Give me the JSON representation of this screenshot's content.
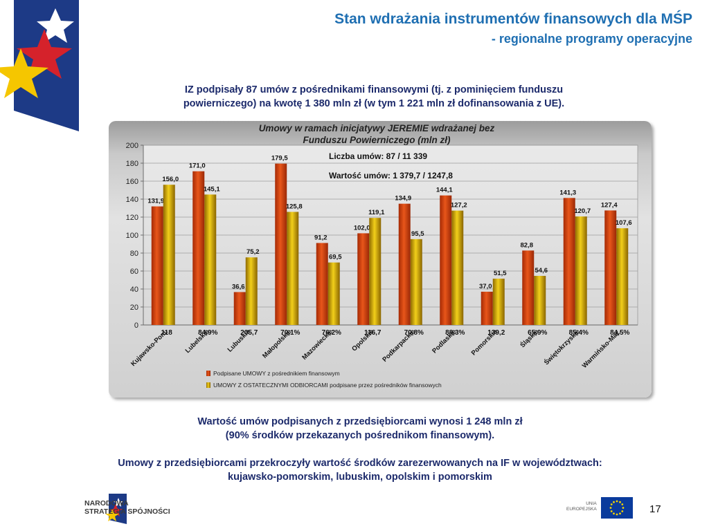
{
  "header": {
    "title_line1": "Stan wdrażania instrumentów finansowych dla MŚP",
    "title_line2": "- regionalne programy operacyjne"
  },
  "intro": {
    "line1": "IZ podpisały 87 umów z pośrednikami finansowymi (tj. z pominięciem funduszu",
    "line2": "powierniczego) na kwotę 1 380 mln zł (w tym 1 221 mln zł dofinansowania z UE)."
  },
  "chart_data": {
    "type": "bar",
    "title_line1": "Umowy w ramach inicjatywy JEREMIE wdrażanej bez",
    "title_line2": "Funduszu Powierniczego (mln zł)",
    "categories": [
      "Kujawsko-Pom.",
      "Lubelskie",
      "Lubuskie",
      "Małopolskie",
      "Mazowieckie",
      "Opolskie",
      "Podkarpackie",
      "Podlaskie",
      "Pomorskie",
      "Śląskie",
      "Świętokrzyskie",
      "Warmińsko-Maz."
    ],
    "series": [
      {
        "name": "Podpisane UMOWY z pośrednikiem finansowym",
        "color": "#d84a12",
        "values": [
          131.9,
          171.0,
          36.6,
          179.5,
          91.2,
          102.0,
          134.9,
          144.1,
          37.0,
          82.8,
          141.3,
          127.4
        ],
        "labels": [
          "131,9",
          "171,0",
          "36,6",
          "179,5",
          "91,2",
          "102,0",
          "134,9",
          "144,1",
          "37,0",
          "82,8",
          "141,3",
          "127,4"
        ]
      },
      {
        "name": "UMOWY Z OSTATECZNYMI ODBIORCAMI podpisane przez pośredników finansowych",
        "color": "#d8b200",
        "values": [
          156.0,
          145.1,
          75.2,
          125.8,
          69.5,
          119.1,
          95.5,
          127.2,
          51.5,
          54.6,
          120.7,
          107.6
        ],
        "labels": [
          "156,0",
          "145,1",
          "75,2",
          "125,8",
          "69,5",
          "119,1",
          "95,5",
          "127,2",
          "51,5",
          "54,6",
          "120,7",
          "107,6"
        ]
      }
    ],
    "percent_labels": [
      "118",
      "84,9%",
      "205,7",
      "70,1%",
      "76,2%",
      "116,7",
      "70,8%",
      "88,3%",
      "139,2",
      "65,9%",
      "85,4%",
      "84,5%"
    ],
    "yticks": [
      "0",
      "20",
      "40",
      "60",
      "80",
      "100",
      "120",
      "140",
      "160",
      "180",
      "200"
    ],
    "ylim": [
      0,
      200
    ],
    "grid": true,
    "legend_placement": "bottom-left",
    "annotation_line1": "Liczba umów: 87  /  11 339",
    "annotation_line2": "Wartość umów: 1 379,7  /  1247,8"
  },
  "notes": {
    "line1": "Wartość umów podpisanych z przedsiębiorcami wynosi 1 248 mln zł",
    "line2": "(90% środków przekazanych pośrednikom finansowym).",
    "line3": "Umowy z przedsiębiorcami przekroczyły wartość środków zarezerwowanych na IF w województwach:",
    "line4": "kujawsko-pomorskim, lubuskim, opolskim i pomorskim"
  },
  "footer": {
    "nss_line1": "NARODOWA",
    "nss_line2": "STRATEGIA SPÓJNOŚCI",
    "ue_line1": "UNIA",
    "ue_line2": "EUROPEJSKA",
    "page_number": "17"
  }
}
